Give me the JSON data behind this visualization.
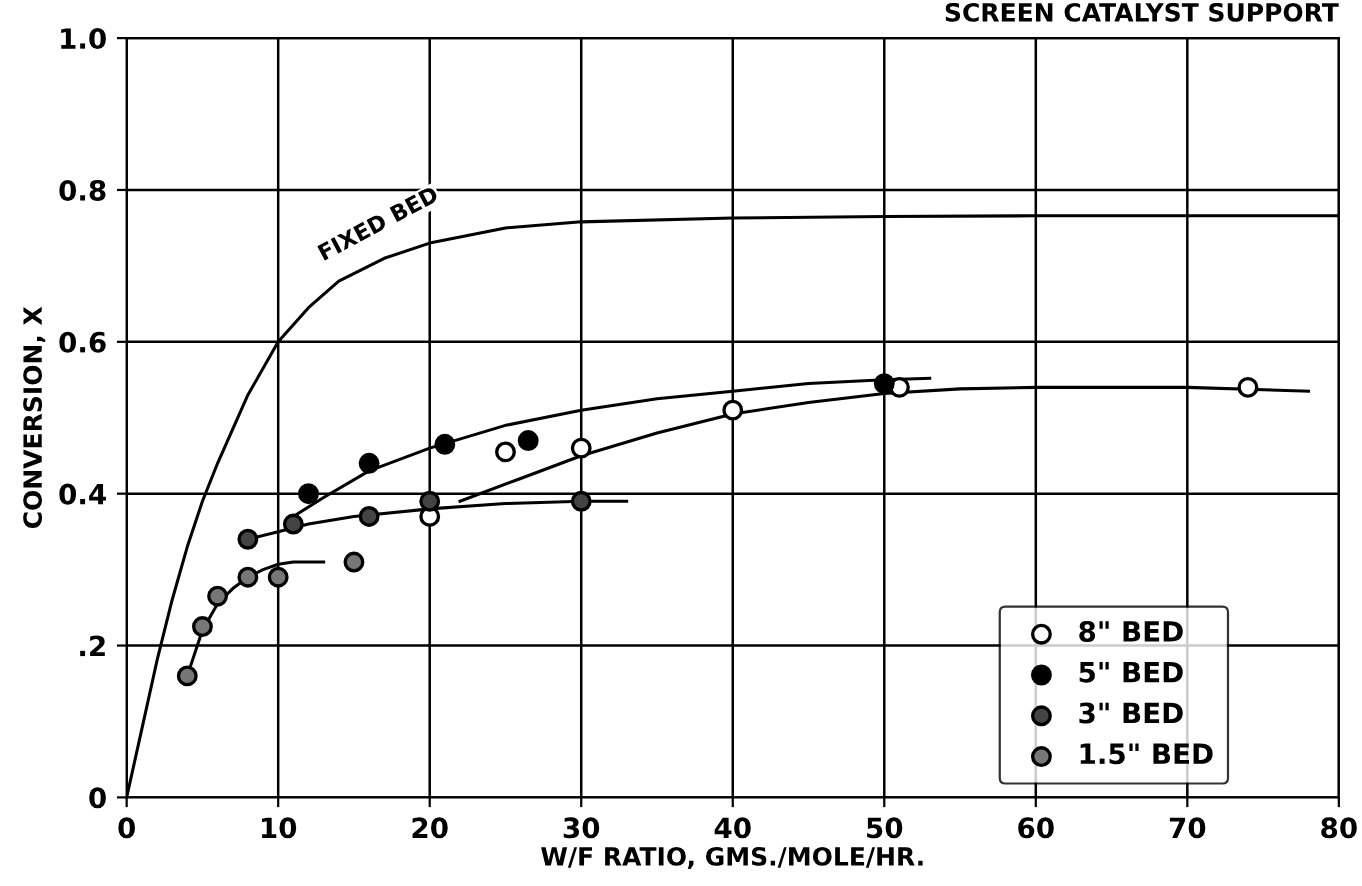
{
  "chart_data": {
    "type": "scatter",
    "title": "SCREEN CATALYST SUPPORT",
    "xlabel": "W/F RATIO, GMS./MOLE/HR.",
    "ylabel": "CONVERSION, X",
    "xlim": [
      0,
      80
    ],
    "ylim": [
      0,
      1.0
    ],
    "xticks": [
      0,
      10,
      20,
      30,
      40,
      50,
      60,
      70,
      80
    ],
    "yticks": [
      0,
      {
        "value": 0.2,
        "label": ".2"
      },
      {
        "value": 0.4,
        "label": "0.4"
      },
      {
        "value": 0.6,
        "label": "0.6"
      },
      {
        "value": 0.8,
        "label": "0.8"
      },
      {
        "value": 1.0,
        "label": "1.0"
      }
    ],
    "grid": true,
    "legend": "bottom right",
    "annotations": [
      {
        "text": "FIXED BED",
        "x": 17,
        "y": 0.71
      }
    ],
    "series": [
      {
        "name": "8\" BED",
        "marker": "circle",
        "color": "#ffffff",
        "x": [
          20,
          25,
          30,
          40,
          51,
          74
        ],
        "values": [
          0.37,
          0.455,
          0.46,
          0.51,
          0.54,
          0.54
        ]
      },
      {
        "name": "5\" BED",
        "marker": "circle",
        "color": "#000000",
        "x": [
          12,
          16,
          21,
          26.5,
          50
        ],
        "values": [
          0.4,
          0.44,
          0.465,
          0.47,
          0.545
        ]
      },
      {
        "name": "3\" BED",
        "marker": "circle",
        "color": "#444444",
        "x": [
          8,
          11,
          16,
          20,
          30
        ],
        "values": [
          0.34,
          0.36,
          0.37,
          0.39,
          0.39
        ]
      },
      {
        "name": "1.5\" BED",
        "marker": "circle",
        "color": "#777777",
        "x": [
          4,
          5,
          6,
          8,
          10,
          15
        ],
        "values": [
          0.16,
          0.225,
          0.265,
          0.29,
          0.29,
          0.31
        ]
      },
      {
        "type": "line",
        "color": "#000000",
        "x": [
          0,
          1,
          2,
          3,
          4,
          5,
          6,
          8,
          10,
          12,
          14,
          17,
          20,
          25,
          30,
          40,
          50,
          60,
          70,
          80
        ],
        "values": [
          0,
          0.09,
          0.18,
          0.26,
          0.33,
          0.39,
          0.44,
          0.53,
          0.6,
          0.645,
          0.68,
          0.71,
          0.73,
          0.75,
          0.758,
          0.763,
          0.765,
          0.766,
          0.766,
          0.766
        ]
      },
      {
        "type": "line",
        "color": "#000000",
        "x": [
          22,
          26,
          30,
          35,
          40,
          45,
          50,
          55,
          60,
          70,
          78
        ],
        "values": [
          0.39,
          0.42,
          0.45,
          0.48,
          0.505,
          0.52,
          0.532,
          0.538,
          0.54,
          0.54,
          0.535
        ]
      },
      {
        "type": "line",
        "color": "#000000",
        "x": [
          11,
          13,
          16,
          20,
          25,
          30,
          35,
          40,
          45,
          50,
          53
        ],
        "values": [
          0.37,
          0.395,
          0.43,
          0.46,
          0.49,
          0.51,
          0.525,
          0.535,
          0.545,
          0.55,
          0.552
        ]
      },
      {
        "type": "line",
        "color": "#000000",
        "x": [
          8,
          10,
          12,
          15,
          20,
          25,
          30,
          33
        ],
        "values": [
          0.34,
          0.35,
          0.36,
          0.37,
          0.38,
          0.387,
          0.39,
          0.39
        ]
      },
      {
        "type": "line",
        "color": "#000000",
        "x": [
          4,
          5,
          6,
          7,
          8,
          9,
          10,
          11,
          12,
          13
        ],
        "values": [
          0.16,
          0.22,
          0.255,
          0.275,
          0.29,
          0.3,
          0.307,
          0.31,
          0.31,
          0.31
        ]
      }
    ]
  }
}
